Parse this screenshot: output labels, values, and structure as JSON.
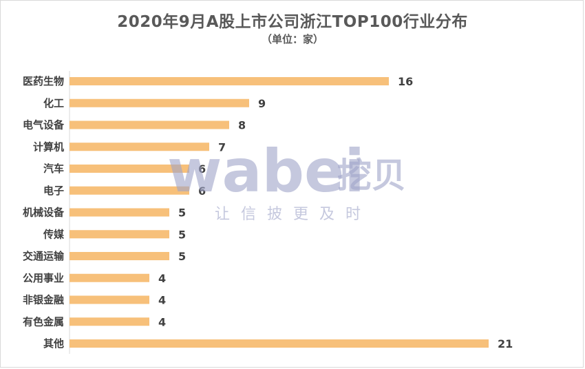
{
  "chart_data": {
    "type": "bar",
    "orientation": "horizontal",
    "title": "2020年9月A股上市公司浙江TOP100行业分布",
    "subtitle": "（单位：家）",
    "categories": [
      "医药生物",
      "化工",
      "电气设备",
      "计算机",
      "汽车",
      "电子",
      "机械设备",
      "传媒",
      "交通运输",
      "公用事业",
      "非银金融",
      "有色金属",
      "其他"
    ],
    "values": [
      16,
      9,
      8,
      7,
      6,
      6,
      5,
      5,
      5,
      4,
      4,
      4,
      21
    ],
    "xlim": [
      0,
      21
    ],
    "bar_color": "#f7c07a",
    "grid": false
  },
  "watermark": {
    "brand": "wabei",
    "brand_cn": "挖贝",
    "slogan": "让信披更及时"
  }
}
